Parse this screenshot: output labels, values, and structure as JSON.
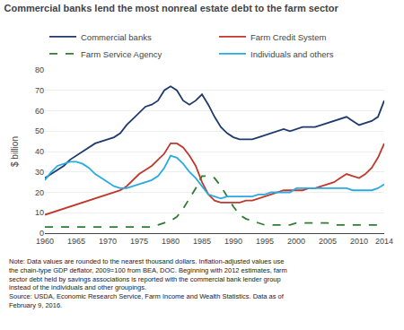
{
  "chart_data": {
    "type": "line",
    "title": "Commercial banks lend the most nonreal estate debt to the farm sector",
    "ylabel": "$ billion",
    "annotations": [
      "Note: Data values are rounded to the nearest thousand dollars. Inflation-adjusted values use\nthe chain-type GDP deflator, 2009=100 from BEA, DOC. Beginning with 2012 estimates, farm\nsector debt held by savings associations is reported with the commercial bank lender group\ninstead of the individuals and other groupings.\nSource: USDA, Economic Research Service, Farm Income and Wealth Statistics. Data as of\nFebruary 9, 2016."
    ],
    "x": [
      1960,
      1961,
      1962,
      1963,
      1964,
      1965,
      1966,
      1967,
      1968,
      1969,
      1970,
      1971,
      1972,
      1973,
      1974,
      1975,
      1976,
      1977,
      1978,
      1979,
      1980,
      1981,
      1982,
      1983,
      1984,
      1985,
      1986,
      1987,
      1988,
      1989,
      1990,
      1991,
      1992,
      1993,
      1994,
      1995,
      1996,
      1997,
      1998,
      1999,
      2000,
      2001,
      2002,
      2003,
      2004,
      2005,
      2006,
      2007,
      2008,
      2009,
      2010,
      2011,
      2012,
      2013,
      2014
    ],
    "xlim": [
      1960,
      2014
    ],
    "xticks": [
      1960,
      1965,
      1970,
      1975,
      1980,
      1985,
      1990,
      1995,
      2000,
      2005,
      2010,
      2014
    ],
    "ylim": [
      0,
      80
    ],
    "yticks": [
      0,
      10,
      20,
      30,
      40,
      50,
      60,
      70,
      80
    ],
    "grid": "y",
    "legend": "top",
    "series": [
      {
        "name": "Commercial banks",
        "color": "#1f3a6e",
        "line_style": "solid",
        "values": [
          27,
          29,
          31,
          33,
          36,
          38,
          40,
          42,
          44,
          45,
          46,
          47,
          49,
          53,
          56,
          59,
          62,
          63,
          65,
          70,
          72,
          70,
          65,
          63,
          65,
          68,
          63,
          57,
          52,
          49,
          47,
          46,
          46,
          46,
          47,
          48,
          49,
          50,
          51,
          50,
          51,
          52,
          52,
          52,
          53,
          54,
          55,
          56,
          57,
          55,
          53,
          54,
          55,
          57,
          65
        ]
      },
      {
        "name": "Farm Credit System",
        "color": "#c0392b",
        "line_style": "solid",
        "values": [
          9,
          10,
          11,
          12,
          13,
          14,
          15,
          16,
          17,
          18,
          19,
          20,
          21,
          23,
          26,
          29,
          31,
          33,
          36,
          39,
          44,
          44,
          42,
          38,
          33,
          25,
          19,
          16,
          15,
          15,
          15,
          15,
          16,
          16,
          17,
          18,
          19,
          20,
          21,
          21,
          21,
          21,
          22,
          22,
          23,
          24,
          25,
          27,
          29,
          28,
          27,
          29,
          32,
          37,
          44
        ]
      },
      {
        "name": "Farm Service Agency",
        "color": "#2e7d32",
        "line_style": "dashed",
        "values": [
          3,
          3,
          3,
          3,
          3,
          3,
          3,
          3,
          3,
          3,
          3,
          3,
          3,
          3,
          3,
          3,
          3,
          3,
          4,
          5,
          6,
          8,
          12,
          17,
          22,
          28,
          28,
          27,
          23,
          18,
          13,
          9,
          7,
          6,
          5,
          4,
          4,
          4,
          4,
          4,
          5,
          5,
          5,
          5,
          5,
          5,
          4,
          4,
          4,
          4,
          4,
          4,
          4,
          4,
          4
        ]
      },
      {
        "name": "Individuals and others",
        "color": "#29abe2",
        "line_style": "solid",
        "values": [
          26,
          30,
          33,
          34,
          35,
          35,
          34,
          32,
          29,
          27,
          25,
          23,
          22,
          22,
          23,
          24,
          25,
          26,
          28,
          32,
          38,
          37,
          34,
          30,
          27,
          23,
          19,
          18,
          17,
          18,
          18,
          18,
          18,
          18,
          19,
          19,
          20,
          20,
          20,
          20,
          22,
          22,
          22,
          22,
          22,
          22,
          22,
          22,
          22,
          21,
          21,
          21,
          21,
          22,
          24
        ]
      }
    ]
  }
}
